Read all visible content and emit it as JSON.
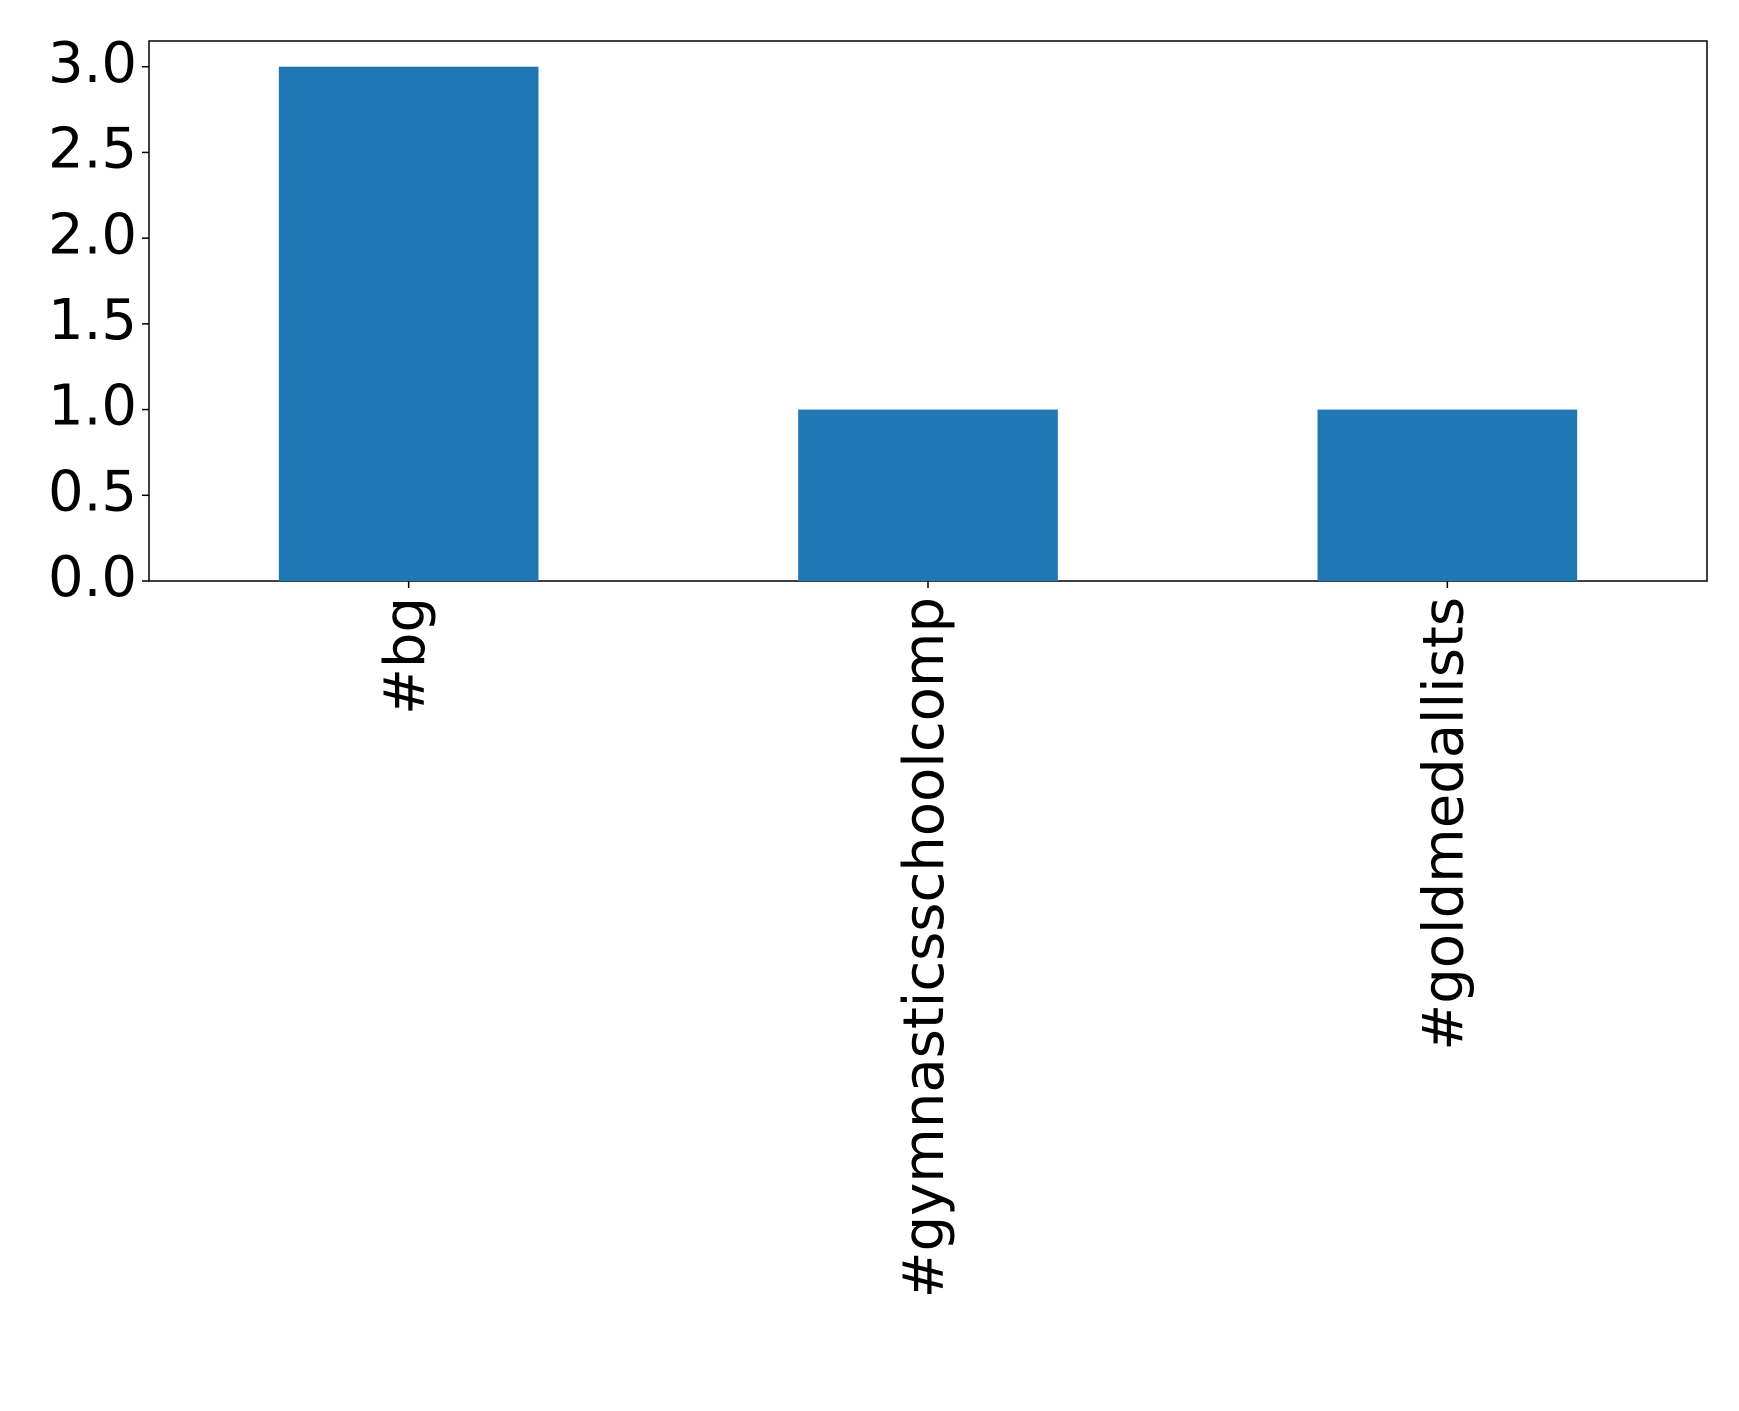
{
  "chart_data": {
    "type": "bar",
    "categories": [
      "#bg",
      "#gymnasticsschoolcomp",
      "#goldmedallists"
    ],
    "values": [
      3,
      1,
      1
    ],
    "color": "#1f77b4",
    "ylim": [
      0,
      3.15
    ],
    "yticks": [
      {
        "value": 0,
        "label": "0.0"
      },
      0.5,
      {
        "value": 1,
        "label": "1.0"
      },
      1.5,
      {
        "value": 2,
        "label": "2.0"
      },
      2.5,
      {
        "value": 3,
        "label": "3.0"
      }
    ],
    "grid": false
  }
}
